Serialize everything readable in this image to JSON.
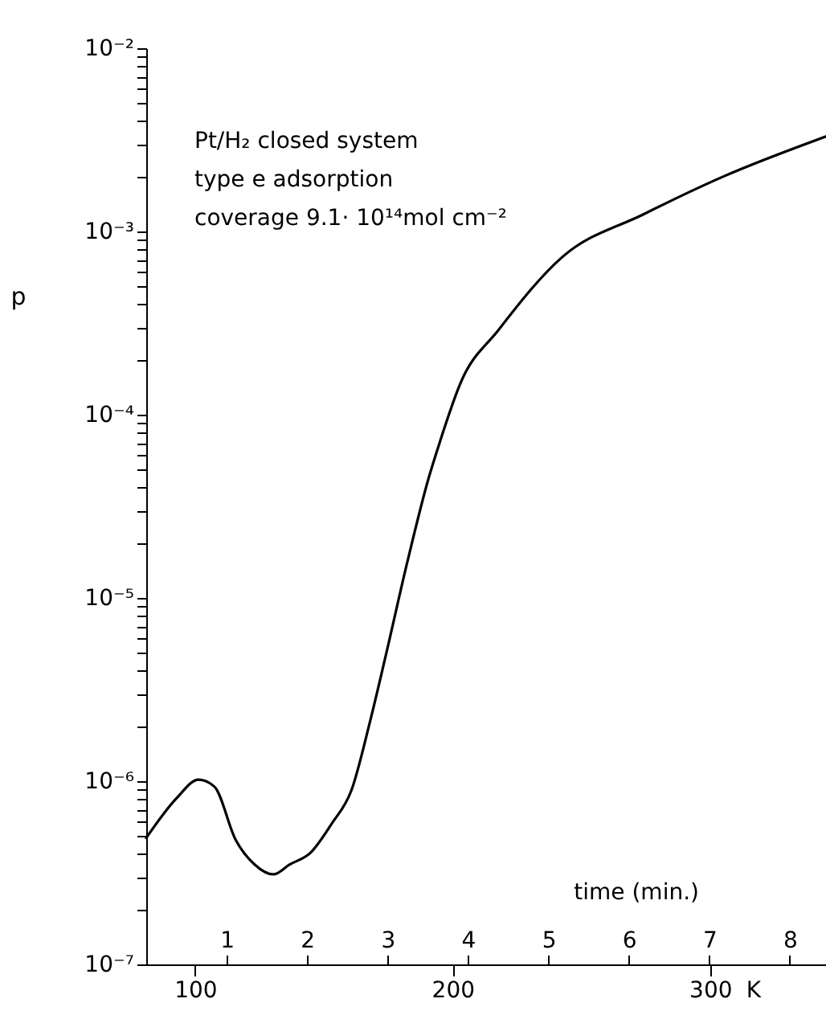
{
  "chart_data": {
    "type": "line",
    "xlabel": "time (min.)",
    "ylabel": "p",
    "annotations": [
      "Pt/H₂  closed system",
      "type e adsorption",
      "coverage 9.1· 10¹⁴mol cm⁻²"
    ],
    "x2lim": [
      81,
      345
    ],
    "x2ticks": [
      100,
      200,
      300
    ],
    "x2label": "K",
    "x": [
      0,
      0.38,
      0.65,
      0.85,
      1.11,
      1.35,
      1.58,
      1.78,
      2.05,
      2.31,
      2.55,
      2.78,
      2.98,
      3.25,
      3.51,
      3.65,
      3.91,
      4.38,
      5.18,
      6.18,
      7.18,
      8.45
    ],
    "series": [
      {
        "color": "#000000",
        "values": [
          4.9e-07,
          8.1e-07,
          1.02e-06,
          9.3e-07,
          4.8e-07,
          3.5e-07,
          3.1e-07,
          3.5e-07,
          4.1e-07,
          5.9e-07,
          8.9e-07,
          2.1e-06,
          4.9e-06,
          1.6e-05,
          4.5e-05,
          7.1e-05,
          0.00015,
          0.00029,
          0.00073,
          0.00124,
          0.002,
          0.0033
        ]
      }
    ],
    "xlim": [
      0,
      8.45
    ],
    "xticks": [
      1,
      2,
      3,
      4,
      5,
      6,
      7,
      8
    ],
    "ylim": [
      1e-07,
      0.01
    ],
    "log": "y",
    "yticks": [
      {
        "value": 1e-07,
        "label": "10⁻⁷"
      },
      {
        "value": 2e-07,
        "label": null
      },
      {
        "value": 3e-07,
        "label": null
      },
      {
        "value": 4e-07,
        "label": null
      },
      {
        "value": 5e-07,
        "label": null
      },
      {
        "value": 6e-07,
        "label": null
      },
      {
        "value": 7e-07,
        "label": null
      },
      {
        "value": 8e-07,
        "label": null
      },
      {
        "value": 9e-07,
        "label": null
      },
      {
        "value": 1e-06,
        "label": "10⁻⁶"
      },
      {
        "value": 2e-06,
        "label": null
      },
      {
        "value": 3e-06,
        "label": null
      },
      {
        "value": 4e-06,
        "label": null
      },
      {
        "value": 5e-06,
        "label": null
      },
      {
        "value": 6e-06,
        "label": null
      },
      {
        "value": 7e-06,
        "label": null
      },
      {
        "value": 8e-06,
        "label": null
      },
      {
        "value": 9e-06,
        "label": null
      },
      {
        "value": 1e-05,
        "label": "10⁻⁵"
      },
      {
        "value": 2e-05,
        "label": null
      },
      {
        "value": 3e-05,
        "label": null
      },
      {
        "value": 4e-05,
        "label": null
      },
      {
        "value": 5e-05,
        "label": null
      },
      {
        "value": 6e-05,
        "label": null
      },
      {
        "value": 7e-05,
        "label": null
      },
      {
        "value": 8e-05,
        "label": null
      },
      {
        "value": 9e-05,
        "label": null
      },
      {
        "value": 0.0001,
        "label": "10⁻⁴"
      },
      {
        "value": 0.0002,
        "label": null
      },
      {
        "value": 0.0003,
        "label": null
      },
      {
        "value": 0.0004,
        "label": null
      },
      {
        "value": 0.0005,
        "label": null
      },
      {
        "value": 0.0006,
        "label": null
      },
      {
        "value": 0.0007,
        "label": null
      },
      {
        "value": 0.0008,
        "label": null
      },
      {
        "value": 0.0009,
        "label": null
      },
      {
        "value": 0.001,
        "label": "10⁻³"
      },
      {
        "value": 0.002,
        "label": null
      },
      {
        "value": 0.003,
        "label": null
      },
      {
        "value": 0.004,
        "label": null
      },
      {
        "value": 0.005,
        "label": null
      },
      {
        "value": 0.006,
        "label": null
      },
      {
        "value": 0.007,
        "label": null
      },
      {
        "value": 0.008,
        "label": null
      },
      {
        "value": 0.009,
        "label": null
      },
      {
        "value": 0.01,
        "label": "10⁻²"
      }
    ],
    "grid": false,
    "marker": "none",
    "line_style": "solid"
  }
}
